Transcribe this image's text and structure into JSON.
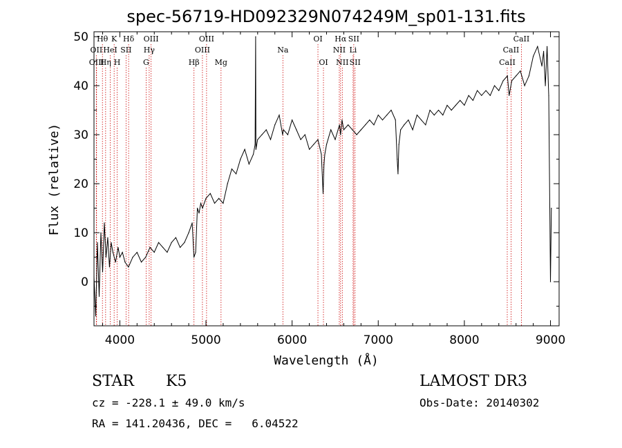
{
  "chart_data": {
    "type": "line",
    "title": "spec-56719-HD092329N074249M_sp01-131.fits",
    "xlabel": "Wavelength (Å)",
    "ylabel": "Flux (relative)",
    "xlim": [
      3700,
      9100
    ],
    "ylim": [
      -9,
      51
    ],
    "xticks": [
      4000,
      5000,
      6000,
      7000,
      8000,
      9000
    ],
    "yticks": [
      0,
      10,
      20,
      30,
      40,
      50
    ],
    "grid": false,
    "series": [
      {
        "x": [
          3700,
          3720,
          3740,
          3760,
          3780,
          3800,
          3820,
          3840,
          3860,
          3880,
          3900,
          3920,
          3950,
          3980,
          4000,
          4030,
          4060,
          4100,
          4150,
          4200,
          4250,
          4300,
          4350,
          4400,
          4450,
          4500,
          4550,
          4600,
          4650,
          4700,
          4750,
          4800,
          4840,
          4860,
          4880,
          4900,
          4920,
          4940,
          4960,
          5000,
          5050,
          5100,
          5150,
          5200,
          5250,
          5300,
          5350,
          5400,
          5450,
          5500,
          5550,
          5570,
          5577,
          5580,
          5600,
          5650,
          5700,
          5750,
          5800,
          5850,
          5890,
          5900,
          5950,
          6000,
          6050,
          6100,
          6150,
          6200,
          6250,
          6300,
          6340,
          6360,
          6370,
          6380,
          6400,
          6450,
          6500,
          6550,
          6563,
          6580,
          6600,
          6650,
          6700,
          6750,
          6800,
          6850,
          6900,
          6950,
          7000,
          7050,
          7100,
          7150,
          7200,
          7220,
          7230,
          7240,
          7260,
          7300,
          7350,
          7400,
          7450,
          7500,
          7550,
          7600,
          7650,
          7700,
          7750,
          7800,
          7850,
          7900,
          7950,
          8000,
          8050,
          8100,
          8150,
          8200,
          8250,
          8300,
          8350,
          8400,
          8450,
          8500,
          8520,
          8550,
          8600,
          8650,
          8700,
          8750,
          8800,
          8850,
          8900,
          8920,
          8940,
          8960,
          8980,
          9000,
          9010
        ],
        "y": [
          1,
          -7,
          8,
          -3,
          10,
          2,
          12,
          5,
          9,
          3,
          8,
          6,
          4,
          7,
          5,
          6,
          4,
          3,
          5,
          6,
          4,
          5,
          7,
          6,
          8,
          7,
          6,
          8,
          9,
          7,
          8,
          10,
          12,
          5,
          6,
          15,
          14,
          16,
          15,
          17,
          18,
          16,
          17,
          16,
          20,
          23,
          22,
          25,
          27,
          24,
          26,
          28,
          50,
          27,
          29,
          30,
          31,
          29,
          32,
          34,
          30,
          31,
          30,
          33,
          31,
          29,
          30,
          27,
          28,
          29,
          26,
          18,
          24,
          26,
          28,
          31,
          29,
          32,
          30,
          33,
          31,
          32,
          31,
          30,
          31,
          32,
          33,
          32,
          34,
          33,
          34,
          35,
          33,
          25,
          22,
          28,
          31,
          32,
          33,
          31,
          34,
          33,
          32,
          35,
          34,
          35,
          34,
          36,
          35,
          36,
          37,
          36,
          38,
          37,
          39,
          38,
          39,
          38,
          40,
          39,
          41,
          42,
          38,
          41,
          42,
          43,
          40,
          42,
          46,
          48,
          44,
          47,
          40,
          48,
          38,
          0,
          15
        ]
      }
    ],
    "spectral_lines": [
      {
        "label": "Hθ",
        "wl": 3798,
        "row": 0
      },
      {
        "label": "OII",
        "wl": 3727,
        "row": 1
      },
      {
        "label": "OIII",
        "wl": 3730,
        "row": 2
      },
      {
        "label": "K",
        "wl": 3934,
        "row": 0
      },
      {
        "label": "HeI",
        "wl": 3889,
        "row": 1
      },
      {
        "label": "Hη",
        "wl": 3835,
        "row": 2
      },
      {
        "label": "Hδ",
        "wl": 4102,
        "row": 0
      },
      {
        "label": "SII",
        "wl": 4072,
        "row": 1
      },
      {
        "label": "H",
        "wl": 3969,
        "row": 2
      },
      {
        "label": "OIII",
        "wl": 4363,
        "row": 0
      },
      {
        "label": "Hγ",
        "wl": 4341,
        "row": 1
      },
      {
        "label": "G",
        "wl": 4305,
        "row": 2
      },
      {
        "label": "OIII",
        "wl": 5007,
        "row": 0
      },
      {
        "label": "OIII",
        "wl": 4959,
        "row": 1
      },
      {
        "label": "Hβ",
        "wl": 4861,
        "row": 2
      },
      {
        "label": "Mg",
        "wl": 5175,
        "row": 2
      },
      {
        "label": "Na",
        "wl": 5893,
        "row": 1
      },
      {
        "label": "OI",
        "wl": 6300,
        "row": 0
      },
      {
        "label": "OI",
        "wl": 6364,
        "row": 2
      },
      {
        "label": "Hα",
        "wl": 6563,
        "row": 0
      },
      {
        "label": "SII",
        "wl": 6716,
        "row": 0
      },
      {
        "label": "NII",
        "wl": 6548,
        "row": 1
      },
      {
        "label": "Li",
        "wl": 6708,
        "row": 1
      },
      {
        "label": "NII",
        "wl": 6583,
        "row": 2
      },
      {
        "label": "SII",
        "wl": 6731,
        "row": 2
      },
      {
        "label": "CaII",
        "wl": 8662,
        "row": 0
      },
      {
        "label": "CaII",
        "wl": 8542,
        "row": 1
      },
      {
        "label": "CaII",
        "wl": 8498,
        "row": 2
      }
    ],
    "colors": {
      "spectrum": "#000000",
      "line_markers": "#cc0000",
      "axes": "#000000"
    }
  },
  "info": {
    "class": "STAR",
    "subclass": "K5",
    "survey": "LAMOST DR3",
    "cz": "cz = -228.1 ± 49.0 km/s",
    "obs_date": "Obs-Date: 20140302",
    "coords": "RA = 141.20436, DEC =   6.04522"
  }
}
